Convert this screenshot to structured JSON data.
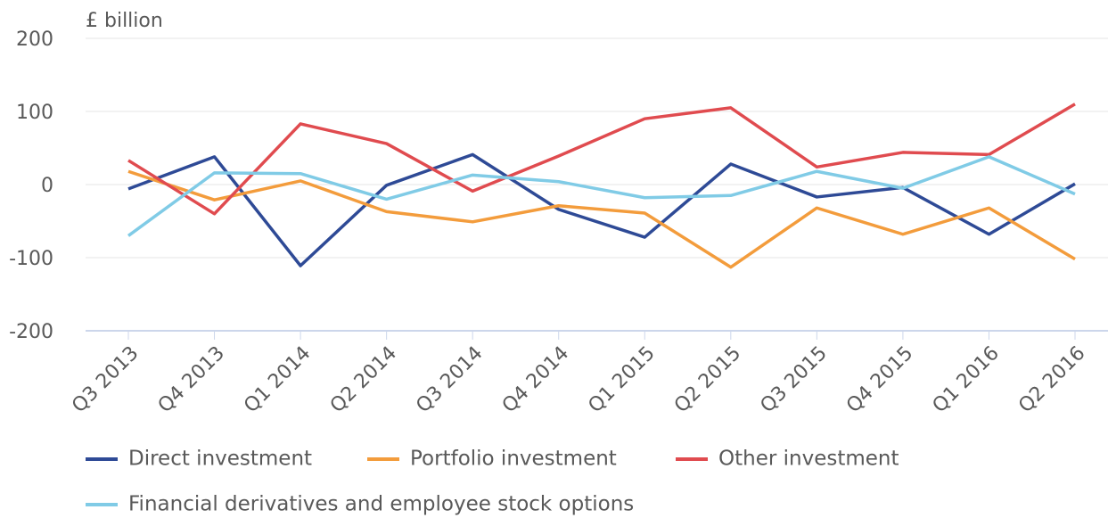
{
  "chart_data": {
    "type": "line",
    "y_axis_label": "£ billion",
    "categories": [
      "Q3 2013",
      "Q4 2013",
      "Q1 2014",
      "Q2 2014",
      "Q3 2014",
      "Q4 2014",
      "Q1 2015",
      "Q2 2015",
      "Q3 2015",
      "Q4 2015",
      "Q1 2016",
      "Q2 2016"
    ],
    "series": [
      {
        "name": "Direct investment",
        "color": "#2e4a96",
        "values": [
          -6,
          38,
          -111,
          -1,
          41,
          -34,
          -72,
          28,
          -17,
          -4,
          -68,
          1
        ]
      },
      {
        "name": "Portfolio investment",
        "color": "#f39c3c",
        "values": [
          18,
          -21,
          5,
          -37,
          -51,
          -29,
          -39,
          -113,
          -32,
          -68,
          -32,
          -102
        ]
      },
      {
        "name": "Other investment",
        "color": "#e04b4f",
        "values": [
          33,
          -40,
          83,
          56,
          -9,
          39,
          90,
          105,
          24,
          44,
          41,
          110
        ]
      },
      {
        "name": "Financial derivatives and employee stock options",
        "color": "#80cbe6",
        "values": [
          -70,
          16,
          15,
          -20,
          13,
          4,
          -18,
          -15,
          18,
          -5,
          38,
          -13
        ]
      }
    ],
    "ylim": [
      -200,
      200
    ],
    "yticks": [
      -200,
      -100,
      0,
      100,
      200
    ],
    "grid": true
  }
}
